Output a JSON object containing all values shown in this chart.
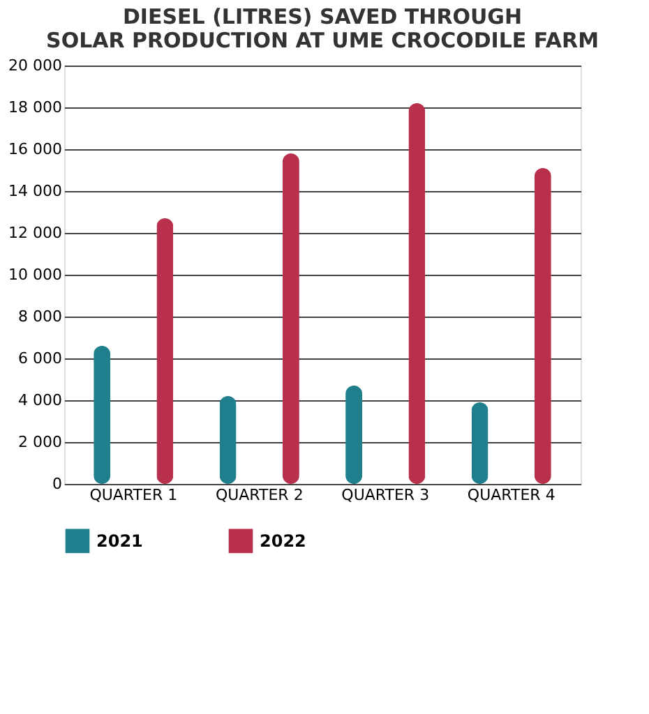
{
  "chart_data": {
    "type": "bar",
    "title": [
      "DIESEL (LITRES) SAVED THROUGH",
      "SOLAR PRODUCTION AT UME CROCODILE FARM"
    ],
    "categories": [
      "QUARTER 1",
      "QUARTER 2",
      "QUARTER 3",
      "QUARTER 4"
    ],
    "series": [
      {
        "name": "2021",
        "color": "#1f7f8c",
        "values": [
          6600,
          4200,
          4700,
          3900
        ]
      },
      {
        "name": "2022",
        "color": "#b8304c",
        "values": [
          12700,
          15800,
          18200,
          15100
        ]
      }
    ],
    "ylim": [
      0,
      20000
    ],
    "yticks": [
      0,
      {
        "value": 2000,
        "label": "2 000"
      },
      {
        "value": 4000,
        "label": "4 000"
      },
      {
        "value": 6000,
        "label": "6 000"
      },
      {
        "value": 8000,
        "label": "8 000"
      },
      {
        "value": 10000,
        "label": "10 000"
      },
      {
        "value": 12000,
        "label": "12 000"
      },
      {
        "value": 14000,
        "label": "14 000"
      },
      {
        "value": 16000,
        "label": "16 000"
      },
      {
        "value": 18000,
        "label": "18 000"
      },
      {
        "value": 20000,
        "label": "20 000"
      }
    ],
    "grid": "y",
    "legend": "bottom"
  }
}
